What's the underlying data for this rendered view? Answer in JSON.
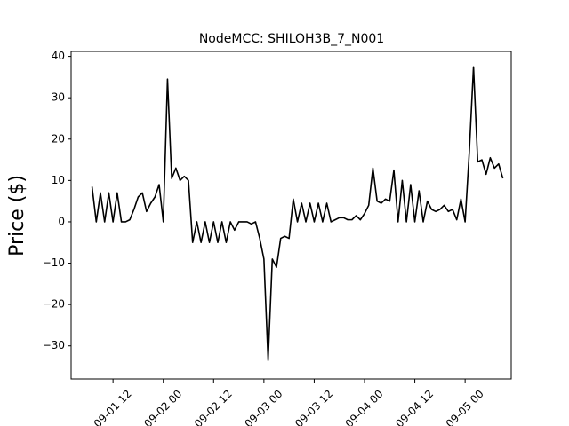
{
  "chart_data": {
    "type": "line",
    "title": "NodeMCC: SHILOH3B_7_N001",
    "y_label": "Price ($)",
    "x": [
      "09-01 07",
      "09-01 08",
      "09-01 09",
      "09-01 10",
      "09-01 11",
      "09-01 12",
      "09-01 13",
      "09-01 14",
      "09-01 15",
      "09-01 16",
      "09-01 17",
      "09-01 18",
      "09-01 19",
      "09-01 20",
      "09-01 21",
      "09-01 22",
      "09-01 23",
      "09-02 00",
      "09-02 01",
      "09-02 02",
      "09-02 03",
      "09-02 04",
      "09-02 05",
      "09-02 06",
      "09-02 07",
      "09-02 08",
      "09-02 09",
      "09-02 10",
      "09-02 11",
      "09-02 12",
      "09-02 13",
      "09-02 14",
      "09-02 15",
      "09-02 16",
      "09-02 17",
      "09-02 18",
      "09-02 19",
      "09-02 20",
      "09-02 21",
      "09-02 22",
      "09-02 23",
      "09-03 00",
      "09-03 01",
      "09-03 02",
      "09-03 03",
      "09-03 04",
      "09-03 05",
      "09-03 06",
      "09-03 07",
      "09-03 08",
      "09-03 09",
      "09-03 10",
      "09-03 11",
      "09-03 12",
      "09-03 13",
      "09-03 14",
      "09-03 15",
      "09-03 16",
      "09-03 17",
      "09-03 18",
      "09-03 19",
      "09-03 20",
      "09-03 21",
      "09-03 22",
      "09-03 23",
      "09-04 00",
      "09-04 01",
      "09-04 02",
      "09-04 03",
      "09-04 04",
      "09-04 05",
      "09-04 06",
      "09-04 07",
      "09-04 08",
      "09-04 09",
      "09-04 10",
      "09-04 11",
      "09-04 12",
      "09-04 13",
      "09-04 14",
      "09-04 15",
      "09-04 16",
      "09-04 17",
      "09-04 18",
      "09-04 19",
      "09-04 20",
      "09-04 21",
      "09-04 22",
      "09-04 23",
      "09-05 00",
      "09-05 01",
      "09-05 02",
      "09-05 03",
      "09-05 04",
      "09-05 05",
      "09-05 06",
      "09-05 07",
      "09-05 08",
      "09-05 09"
    ],
    "series": [
      {
        "color": "#000000",
        "values": [
          8.5,
          0,
          7,
          0,
          7,
          0,
          7,
          0,
          0,
          0.5,
          3,
          6,
          7,
          2.5,
          4.5,
          6,
          9,
          0,
          34.5,
          10.5,
          13,
          10,
          11,
          10,
          -5,
          0,
          -5,
          0,
          -5,
          0,
          -5,
          0,
          -5,
          0,
          -2,
          0,
          0,
          0,
          -0.5,
          0,
          -4,
          -9,
          -33.5,
          -9,
          -11,
          -4,
          -3.5,
          -4,
          5.5,
          0,
          4.5,
          0,
          4.5,
          0,
          4.5,
          0,
          4.5,
          0,
          0.5,
          1,
          1,
          0.5,
          0.5,
          1.5,
          0.5,
          2,
          4,
          13,
          5,
          4.5,
          5.5,
          5,
          12.5,
          0,
          10,
          0,
          9,
          0,
          7.5,
          0,
          5,
          3,
          2.5,
          3,
          4,
          2.5,
          3,
          0.5,
          5.5,
          0,
          17,
          37.5,
          14.5,
          15,
          11.5,
          15.5,
          13,
          14,
          10.5
        ]
      }
    ],
    "xlim": [
      "09-01 02",
      "09-05 11"
    ],
    "xticks": [
      "09-01 12",
      "09-02 00",
      "09-02 12",
      "09-03 00",
      "09-03 12",
      "09-04 00",
      "09-04 12",
      "09-05 00"
    ],
    "ylim": [
      -38,
      41.2
    ],
    "yticks": [
      {
        "value": -30,
        "label": "−30"
      },
      {
        "value": -20,
        "label": "−20"
      },
      {
        "value": -10,
        "label": "−10"
      },
      0,
      10,
      20,
      30,
      40
    ],
    "grid": false
  }
}
